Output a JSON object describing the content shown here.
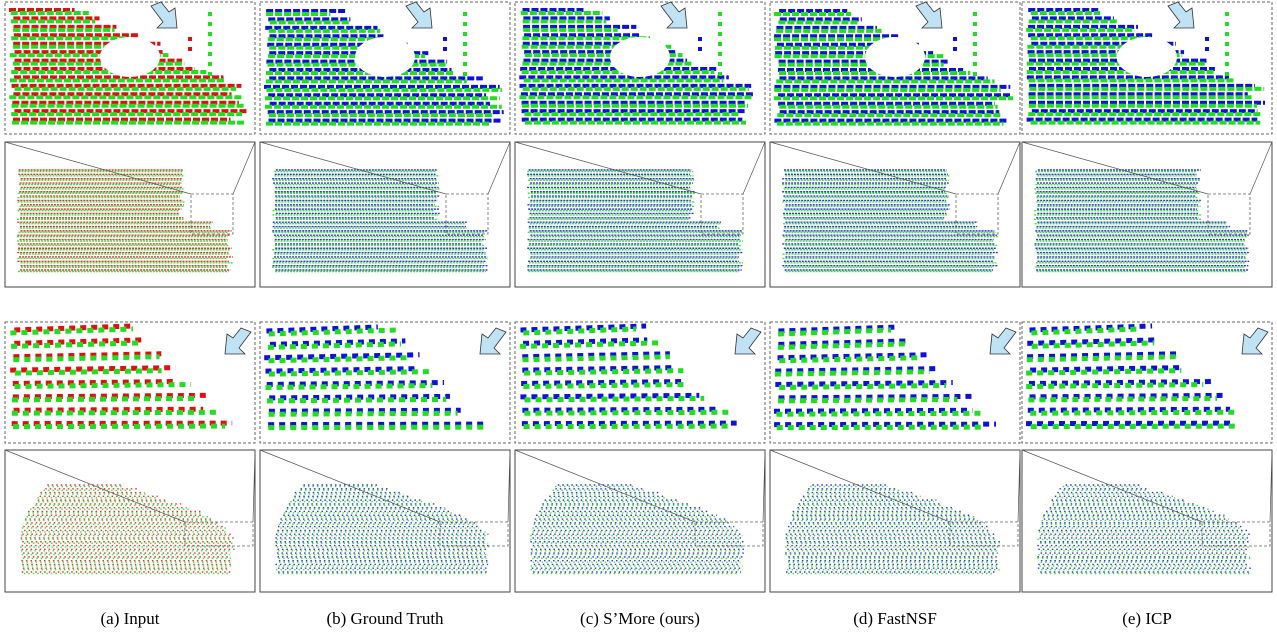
{
  "captions": [
    "(a) Input",
    "(b) Ground Truth",
    "(c) S’More (ours)",
    "(d) FastNSF",
    "(e) ICP"
  ]
}
